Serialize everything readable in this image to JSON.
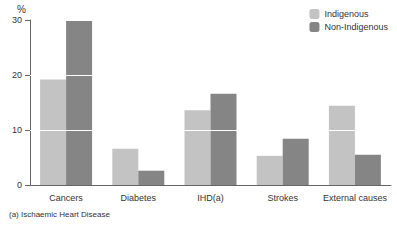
{
  "chart_data": {
    "type": "bar",
    "y_label": "%",
    "note": "(a) Ischaemic Heart Disease",
    "categories": [
      "Cancers",
      "Diabetes",
      "IHD(a)",
      "Strokes",
      "External causes"
    ],
    "series": [
      {
        "name": "Indigenous",
        "color": "#c3c3c3",
        "values": [
          19.2,
          6.6,
          13.6,
          5.3,
          14.4
        ]
      },
      {
        "name": "Non-Indigenous",
        "color": "#858585",
        "values": [
          29.8,
          2.6,
          16.6,
          8.4,
          5.5
        ]
      }
    ],
    "ylim": [
      0,
      30
    ],
    "yticks": [
      0,
      10,
      20,
      30
    ],
    "grid": true,
    "legend": "top-right"
  }
}
